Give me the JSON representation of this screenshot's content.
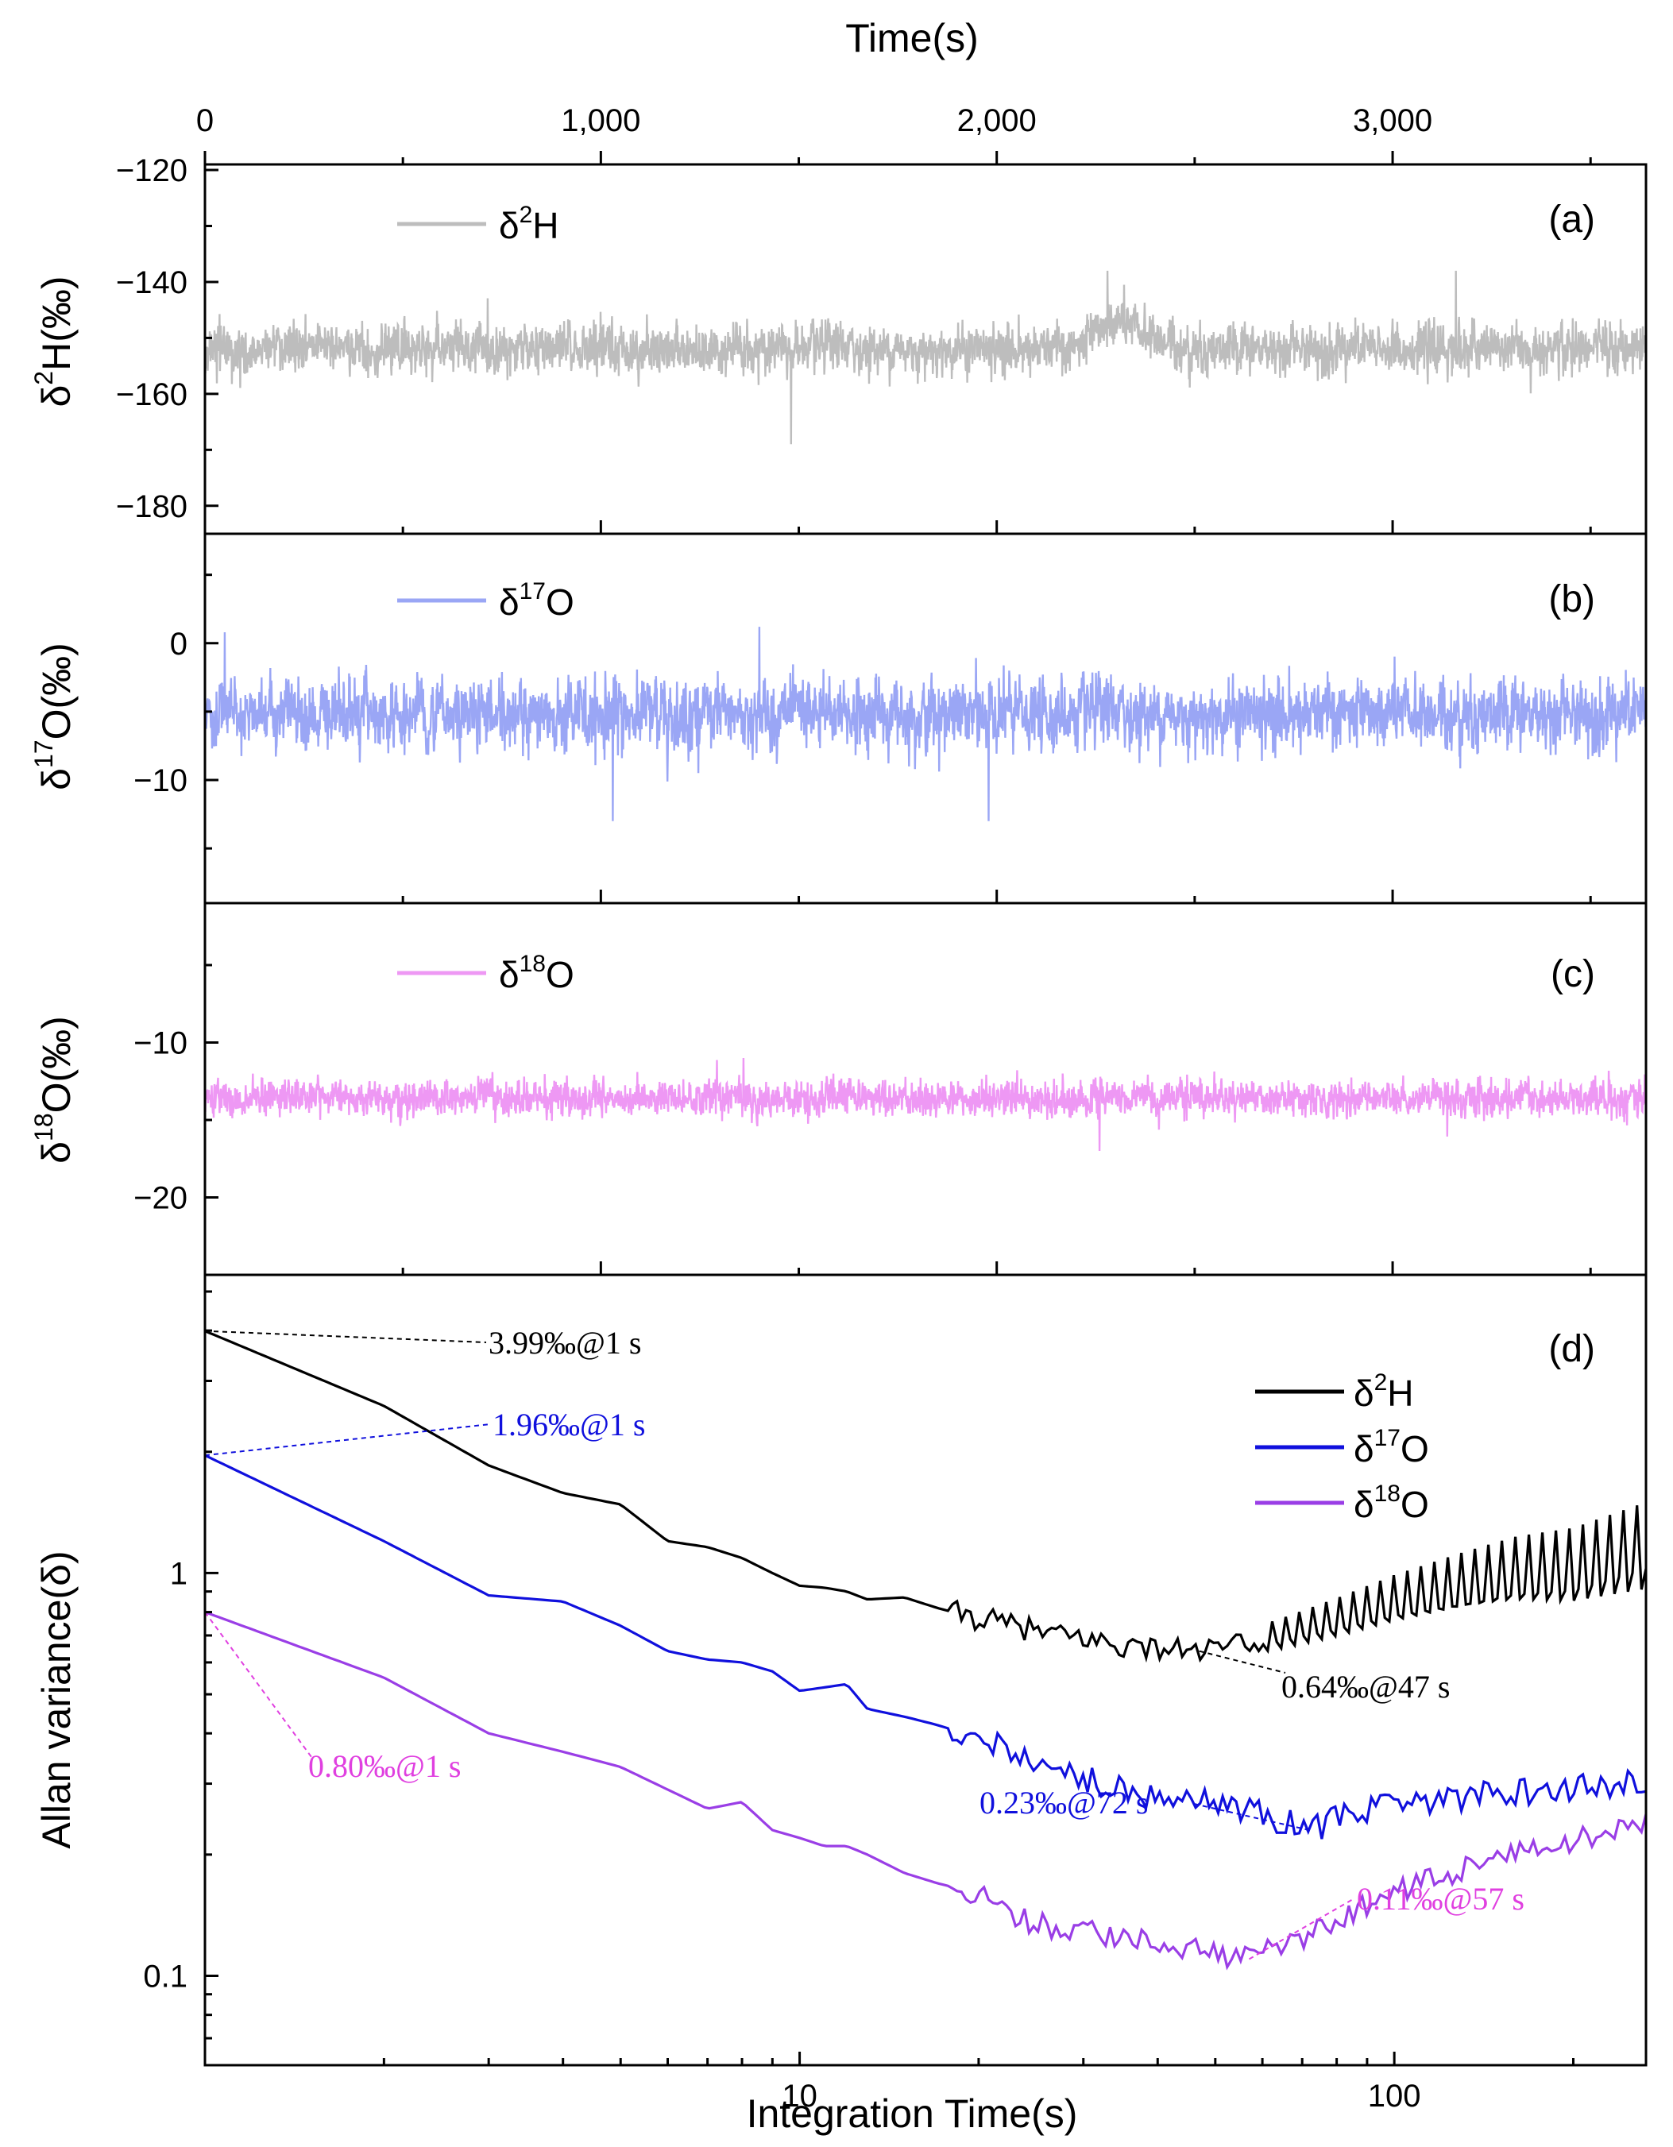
{
  "top_axis": {
    "title": "Time(s)",
    "ticks": [
      {
        "v": 0,
        "label": "0"
      },
      {
        "v": 1000,
        "label": "1,000"
      },
      {
        "v": 2000,
        "label": "2,000"
      },
      {
        "v": 3000,
        "label": "3,000"
      }
    ],
    "minor_ticks": [
      500,
      1500,
      2500,
      3500
    ],
    "range": [
      0,
      3640
    ]
  },
  "colors": {
    "d2H": "#bdbdbd",
    "d17O": "#9aa6f5",
    "d18O": "#ee98f4",
    "allan_d2H": "#000000",
    "allan_d17O": "#1010dd",
    "allan_d18O": "#9a3ee6",
    "ann_1s": "#e040e0",
    "ann_57s": "#e040e0"
  },
  "chart_data": [
    {
      "type": "line",
      "panel": "(a)",
      "ylabel": "δ2H(‰)",
      "ylabel_base": "δ",
      "ylabel_sup": "2",
      "ylabel_rest": "H(‰)",
      "legend": {
        "base": "δ",
        "sup": "2",
        "rest": "H"
      },
      "xlim": [
        0,
        3640
      ],
      "ylim": [
        -185,
        -119
      ],
      "yticks": [
        {
          "v": -120,
          "label": "−120"
        },
        {
          "v": -140,
          "label": "−140"
        },
        {
          "v": -160,
          "label": "−160"
        },
        {
          "v": -180,
          "label": "−180"
        }
      ],
      "series": {
        "name": "δ2H",
        "mean": -152,
        "noise_sd": 3.3,
        "n_points": 3640,
        "drift": [
          {
            "x": 0,
            "y": 0
          },
          {
            "x": 2200,
            "y": 0
          },
          {
            "x": 2290,
            "y": 5
          },
          {
            "x": 2480,
            "y": 0
          },
          {
            "x": 3640,
            "y": 0
          }
        ],
        "notable_extremes": [
          {
            "x": 2280,
            "y": -138
          },
          {
            "x": 1480,
            "y": -169
          },
          {
            "x": 3160,
            "y": -138
          }
        ]
      }
    },
    {
      "type": "line",
      "panel": "(b)",
      "ylabel": "δ17O(‰)",
      "ylabel_base": "δ",
      "ylabel_sup": "17",
      "ylabel_rest": "O(‰)",
      "legend": {
        "base": "δ",
        "sup": "17",
        "rest": "O"
      },
      "xlim": [
        0,
        3640
      ],
      "ylim": [
        -19,
        8
      ],
      "yticks": [
        {
          "v": 0,
          "label": "0"
        },
        {
          "v": -10,
          "label": "−10"
        }
      ],
      "series": {
        "name": "δ17O",
        "mean": -5.2,
        "noise_sd": 1.9,
        "n_points": 3640,
        "notable_extremes": [
          {
            "x": 1400,
            "y": 1.2
          },
          {
            "x": 50,
            "y": 0.8
          },
          {
            "x": 1980,
            "y": -13
          },
          {
            "x": 1030,
            "y": -13
          }
        ]
      }
    },
    {
      "type": "line",
      "panel": "(c)",
      "ylabel": "δ18O(‰)",
      "ylabel_base": "δ",
      "ylabel_sup": "18",
      "ylabel_rest": "O(‰)",
      "legend": {
        "base": "δ",
        "sup": "18",
        "rest": "O"
      },
      "xlim": [
        0,
        3640
      ],
      "ylim": [
        -25,
        -1
      ],
      "yticks": [
        {
          "v": -10,
          "label": "−10"
        },
        {
          "v": -20,
          "label": "−20"
        }
      ],
      "series": {
        "name": "δ18O",
        "mean": -13.6,
        "noise_sd": 0.85,
        "n_points": 3640,
        "notable_extremes": [
          {
            "x": 2260,
            "y": -17
          },
          {
            "x": 1360,
            "y": -11
          }
        ]
      }
    },
    {
      "type": "line",
      "panel": "(d)",
      "xscale": "log",
      "yscale": "log",
      "xlabel": "Integration Time(s)",
      "ylabel": "Allan variance(δ)",
      "xlim": [
        1,
        265
      ],
      "ylim": [
        0.06,
        5.5
      ],
      "xticks": [
        {
          "v": 10,
          "label": "10"
        },
        {
          "v": 100,
          "label": "100"
        }
      ],
      "yticks": [
        {
          "v": 1,
          "label": "1"
        },
        {
          "v": 0.1,
          "label": "0.1"
        }
      ],
      "series": [
        {
          "name": "δ2H",
          "legend": {
            "base": "δ",
            "sup": "2",
            "rest": "H"
          },
          "x": [
            1,
            2,
            3,
            4,
            5,
            6,
            7,
            8,
            9,
            10,
            11,
            12,
            13,
            15,
            17,
            20,
            23,
            27,
            30,
            35,
            40,
            47,
            55,
            65,
            80,
            100,
            130,
            160,
            200,
            265
          ],
          "y": [
            3.99,
            2.6,
            1.85,
            1.58,
            1.48,
            1.2,
            1.16,
            1.09,
            1.0,
            0.93,
            0.92,
            0.9,
            0.86,
            0.87,
            0.82,
            0.77,
            0.74,
            0.7,
            0.69,
            0.66,
            0.65,
            0.64,
            0.66,
            0.7,
            0.76,
            0.84,
            0.92,
            0.98,
            1.0,
            1.12
          ]
        },
        {
          "name": "δ17O",
          "legend": {
            "base": "δ",
            "sup": "17",
            "rest": "O"
          },
          "x": [
            1,
            2,
            3,
            4,
            5,
            6,
            7,
            8,
            9,
            10,
            11,
            12,
            13,
            15,
            17,
            20,
            23,
            27,
            30,
            35,
            40,
            47,
            55,
            60,
            72,
            90,
            110,
            140,
            180,
            265
          ],
          "y": [
            1.96,
            1.2,
            0.88,
            0.85,
            0.74,
            0.64,
            0.61,
            0.6,
            0.57,
            0.51,
            0.52,
            0.53,
            0.46,
            0.44,
            0.42,
            0.39,
            0.36,
            0.33,
            0.31,
            0.29,
            0.28,
            0.275,
            0.26,
            0.25,
            0.23,
            0.26,
            0.27,
            0.28,
            0.29,
            0.3
          ]
        },
        {
          "name": "δ18O",
          "legend": {
            "base": "δ",
            "sup": "18",
            "rest": "O"
          },
          "x": [
            1,
            2,
            3,
            4,
            5,
            6,
            7,
            8,
            9,
            10,
            11,
            12,
            13,
            15,
            17,
            20,
            23,
            27,
            30,
            35,
            40,
            47,
            57,
            65,
            75,
            90,
            110,
            140,
            180,
            265
          ],
          "y": [
            0.8,
            0.55,
            0.4,
            0.36,
            0.33,
            0.29,
            0.26,
            0.27,
            0.23,
            0.22,
            0.21,
            0.21,
            0.2,
            0.18,
            0.17,
            0.16,
            0.14,
            0.13,
            0.13,
            0.125,
            0.12,
            0.115,
            0.11,
            0.12,
            0.13,
            0.15,
            0.17,
            0.19,
            0.21,
            0.24
          ]
        }
      ],
      "annotations": [
        {
          "text": "3.99‰@1 s",
          "series": "δ2H",
          "x": 1,
          "y": 3.99,
          "color": "#000000"
        },
        {
          "text": "1.96‰@1 s",
          "series": "δ17O",
          "x": 1,
          "y": 1.96,
          "color": "#1010dd"
        },
        {
          "text": "0.80‰@1 s",
          "series": "δ18O",
          "x": 1,
          "y": 0.8,
          "color": "#e040e0"
        },
        {
          "text": "0.64‰@47 s",
          "series": "δ2H",
          "x": 47,
          "y": 0.64,
          "color": "#000000"
        },
        {
          "text": "0.23‰@72 s",
          "series": "δ17O",
          "x": 72,
          "y": 0.23,
          "color": "#1010dd"
        },
        {
          "text": "0.11‰@57 s",
          "series": "δ18O",
          "x": 57,
          "y": 0.11,
          "color": "#e040e0"
        }
      ]
    }
  ]
}
